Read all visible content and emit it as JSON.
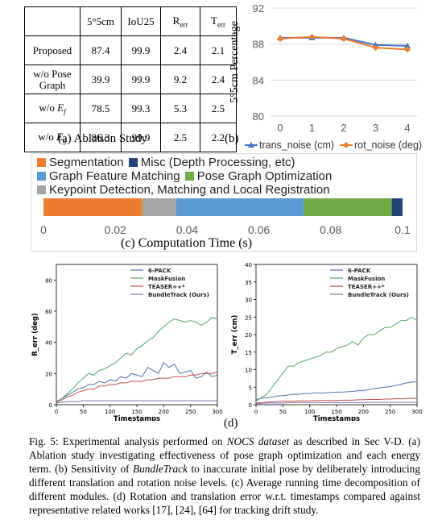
{
  "ablation": {
    "headers": [
      "",
      "5°5cm",
      "IoU25",
      "R_err",
      "T_err"
    ],
    "rows": [
      {
        "name": "Proposed",
        "v": [
          "87.4",
          "99.9",
          "2.4",
          "2.1"
        ]
      },
      {
        "name": "w/o Pose Graph",
        "v": [
          "39.9",
          "99.9",
          "9.2",
          "2.4"
        ]
      },
      {
        "name": "w/o E_f",
        "v": [
          "78.5",
          "99.3",
          "5.3",
          "2.5"
        ]
      },
      {
        "name": "w/o E_g",
        "v": [
          "86.3",
          "99.9",
          "2.5",
          "2.2"
        ]
      }
    ],
    "caption": "(a)  Ablation Study"
  },
  "panel_b_label": "(b)",
  "panel_c_caption": "(c)  Computation Time (s)",
  "panel_d_label": "(d)",
  "chart_data": [
    {
      "type": "line",
      "x": [
        0,
        1,
        2,
        3,
        4
      ],
      "ylabel": "5°5cm Percentage",
      "ylim": [
        80,
        92
      ],
      "yticks": [
        80,
        84,
        88,
        92
      ],
      "grid": true,
      "legend": "bottom",
      "series": [
        {
          "name": "trans_noise (cm)",
          "color": "#4472c4",
          "marker": "triangle",
          "values": [
            88.7,
            88.7,
            88.7,
            87.9,
            87.8
          ]
        },
        {
          "name": "rot_noise (deg)",
          "color": "#ed7d31",
          "marker": "diamond",
          "values": [
            88.6,
            88.8,
            88.6,
            87.6,
            87.4
          ]
        }
      ]
    },
    {
      "type": "bar",
      "orientation": "horizontal-stacked",
      "xlim": [
        0,
        0.1
      ],
      "xticks": [
        "0",
        "0.02",
        "0.04",
        "0.06",
        "0.08",
        "0.1"
      ],
      "legend": "top",
      "series": [
        {
          "name": "Segmentation",
          "color": "#ed7d31",
          "value": 0.0275
        },
        {
          "name": "Keypoint Detection, Matching and Local Registration",
          "color": "#a5a5a5",
          "value": 0.0095
        },
        {
          "name": "Graph Feature Matching",
          "color": "#5b9bd5",
          "value": 0.0355
        },
        {
          "name": "Pose Graph Optimization",
          "color": "#70ad47",
          "value": 0.0245
        },
        {
          "name": "Misc (Depth Processing, etc)",
          "color": "#264478",
          "value": 0.003
        }
      ],
      "legend_order": [
        "Segmentation",
        "Misc (Depth Processing, etc)",
        "Graph Feature Matching",
        "Pose Graph Optimization",
        "Keypoint Detection, Matching and Local Registration"
      ]
    },
    {
      "type": "line",
      "xlabel": "Timestamps",
      "ylabel": "R_err (deg)",
      "xlim": [
        0,
        300
      ],
      "ylim": [
        0,
        90
      ],
      "xticks": [
        0,
        50,
        100,
        150,
        200,
        250,
        300
      ],
      "yticks": [
        0,
        20,
        40,
        60,
        80
      ],
      "legend": "top",
      "series": [
        {
          "name": "6-PACK",
          "color": "#4c72b0",
          "x": [
            0,
            10,
            20,
            30,
            40,
            50,
            60,
            70,
            80,
            90,
            100,
            110,
            120,
            130,
            140,
            150,
            160,
            170,
            180,
            190,
            200,
            210,
            220,
            230,
            240,
            250,
            260,
            270,
            280,
            290,
            300
          ],
          "values": [
            2,
            4,
            6,
            8,
            10,
            11,
            13,
            13,
            15,
            14,
            16,
            15,
            18,
            17,
            20,
            19,
            18,
            24,
            22,
            20,
            27,
            24,
            26,
            20,
            21,
            22,
            17,
            18,
            21,
            18,
            19
          ]
        },
        {
          "name": "MaskFusion",
          "color": "#55a868",
          "x": [
            0,
            10,
            20,
            30,
            40,
            50,
            60,
            70,
            80,
            90,
            100,
            110,
            120,
            130,
            140,
            150,
            160,
            170,
            180,
            190,
            200,
            210,
            220,
            230,
            240,
            250,
            260,
            270,
            280,
            290,
            300
          ],
          "values": [
            1,
            4,
            7,
            10,
            14,
            17,
            20,
            19,
            22,
            23,
            25,
            27,
            30,
            33,
            32,
            36,
            38,
            41,
            43,
            47,
            50,
            53,
            55,
            54,
            53,
            54,
            53,
            51,
            53,
            56,
            55
          ]
        },
        {
          "name": "TEASER++*",
          "color": "#c44e52",
          "x": [
            0,
            10,
            20,
            30,
            40,
            50,
            60,
            70,
            80,
            90,
            100,
            110,
            120,
            130,
            140,
            150,
            160,
            170,
            180,
            190,
            200,
            210,
            220,
            230,
            240,
            250,
            260,
            270,
            280,
            290,
            300
          ],
          "values": [
            2,
            3,
            5,
            6,
            8,
            9,
            10,
            10,
            12,
            12,
            13,
            13,
            14,
            14,
            15,
            15,
            15,
            16,
            16,
            17,
            17,
            17,
            18,
            18,
            18,
            19,
            19,
            20,
            20,
            20,
            21
          ]
        },
        {
          "name": "BundleTrack (Ours)",
          "color": "#8172b3",
          "x": [
            0,
            10,
            20,
            30,
            40,
            50,
            60,
            70,
            80,
            90,
            100,
            110,
            120,
            130,
            140,
            150,
            160,
            170,
            180,
            190,
            200,
            210,
            220,
            230,
            240,
            250,
            260,
            270,
            280,
            290,
            300
          ],
          "values": [
            1,
            1.5,
            2,
            2,
            2,
            2.5,
            2.5,
            2.5,
            2.5,
            2.5,
            2.5,
            2.5,
            2.5,
            2.5,
            2.5,
            2.5,
            2.5,
            2.5,
            2.5,
            2.5,
            2.5,
            2.5,
            2.5,
            2.5,
            2.5,
            2.5,
            2.5,
            2.5,
            2.5,
            2.5,
            2.5
          ]
        }
      ]
    },
    {
      "type": "line",
      "xlabel": "Timestamps",
      "ylabel": "T_err (cm)",
      "xlim": [
        0,
        300
      ],
      "ylim": [
        0,
        40
      ],
      "xticks": [
        0,
        50,
        100,
        150,
        200,
        250,
        300
      ],
      "yticks": [
        0,
        5,
        10,
        15,
        20,
        25,
        30,
        35,
        40
      ],
      "legend": "top",
      "series": [
        {
          "name": "6-PACK",
          "color": "#4c72b0",
          "x": [
            0,
            10,
            20,
            30,
            40,
            50,
            60,
            70,
            80,
            90,
            100,
            110,
            120,
            130,
            140,
            150,
            160,
            170,
            180,
            190,
            200,
            210,
            220,
            230,
            240,
            250,
            260,
            270,
            280,
            290,
            300
          ],
          "values": [
            1.5,
            1.8,
            2,
            2.2,
            2.5,
            2.6,
            2.8,
            3,
            3,
            3.2,
            3.2,
            3.4,
            3.3,
            3.4,
            3.5,
            3.6,
            3.6,
            3.7,
            3.8,
            4,
            4,
            4.3,
            4.6,
            4.8,
            5,
            5.2,
            5.5,
            5.8,
            6.2,
            6.5,
            6.5
          ]
        },
        {
          "name": "MaskFusion",
          "color": "#55a868",
          "x": [
            0,
            10,
            20,
            30,
            40,
            50,
            60,
            70,
            80,
            90,
            100,
            110,
            120,
            130,
            140,
            150,
            160,
            170,
            180,
            190,
            200,
            210,
            220,
            230,
            240,
            250,
            260,
            270,
            280,
            290,
            300
          ],
          "values": [
            1,
            2,
            3,
            5,
            7,
            9,
            11,
            11,
            12,
            12.5,
            13,
            13.5,
            14,
            15,
            15,
            16,
            16.5,
            17,
            18,
            17,
            19,
            20,
            20,
            21,
            22,
            22,
            23,
            24,
            24,
            25,
            24
          ]
        },
        {
          "name": "TEASER++*",
          "color": "#c44e52",
          "x": [
            0,
            10,
            20,
            30,
            40,
            50,
            60,
            70,
            80,
            90,
            100,
            110,
            120,
            130,
            140,
            150,
            160,
            170,
            180,
            190,
            200,
            210,
            220,
            230,
            240,
            250,
            260,
            270,
            280,
            290,
            300
          ],
          "values": [
            0.5,
            0.6,
            0.7,
            0.8,
            0.9,
            1,
            1,
            1,
            1.1,
            1.1,
            1.1,
            1.2,
            1.2,
            1.2,
            1.2,
            1.2,
            1.3,
            1.3,
            1.3,
            1.4,
            1.4,
            1.5,
            1.5,
            1.5,
            1.6,
            1.6,
            1.7,
            1.7,
            1.8,
            1.8,
            1.8
          ]
        },
        {
          "name": "BundleTrack (Ours)",
          "color": "#8172b3",
          "x": [
            0,
            10,
            20,
            30,
            40,
            50,
            60,
            70,
            80,
            90,
            100,
            110,
            120,
            130,
            140,
            150,
            160,
            170,
            180,
            190,
            200,
            210,
            220,
            230,
            240,
            250,
            260,
            270,
            280,
            290,
            300
          ],
          "values": [
            0.3,
            0.4,
            0.5,
            0.5,
            0.5,
            0.5,
            0.6,
            0.6,
            0.6,
            0.6,
            0.6,
            0.6,
            0.6,
            0.6,
            0.6,
            0.6,
            0.6,
            0.6,
            0.6,
            0.6,
            0.6,
            0.7,
            0.7,
            0.7,
            0.7,
            0.7,
            0.7,
            0.7,
            0.7,
            0.7,
            0.7
          ]
        }
      ]
    }
  ],
  "figure_caption": {
    "p1": "Fig. 5: Experimental analysis performed on ",
    "p1_italic": "NOCS dataset",
    "p2": " as described in Sec V-D. (a) Ablation study investigating effectiveness of pose graph optimization and each energy term. (b) Sensitivity of ",
    "p2_italic": "BundleTrack",
    "p3": " to inaccurate initial pose by deliberately introducing different translation and rotation noise levels. (c) Average running time decomposition of different modules. (d) Rotation and translation error w.r.t. timestamps compared against representative related works [17], [24], [64] for tracking drift study."
  }
}
